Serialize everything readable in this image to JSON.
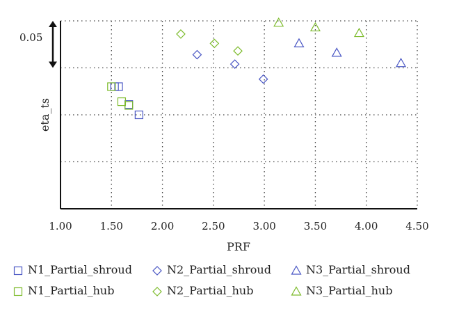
{
  "chart_data": {
    "type": "scatter",
    "title": "",
    "xlabel": "PRF",
    "ylabel": "eta_ts",
    "xlim": [
      1.0,
      4.5
    ],
    "x_ticks": [
      "1.00",
      "1.50",
      "2.00",
      "2.50",
      "3.00",
      "3.50",
      "4.00",
      "4.50"
    ],
    "x_tick_values": [
      1.0,
      1.5,
      2.0,
      2.5,
      3.0,
      3.5,
      4.0,
      4.5
    ],
    "ylim": [
      0.0,
      0.2
    ],
    "y_ticks_labeled": false,
    "y_gridlines": [
      0.05,
      0.1,
      0.15
    ],
    "scale_bar_label": "0.05",
    "scale_bar_value": 0.05,
    "grid": true,
    "legend_position": "bottom",
    "series": [
      {
        "name": "N1_Partial_shroud",
        "marker": "square",
        "color": "#4a57c4",
        "points": [
          [
            1.53,
            0.13
          ],
          [
            1.57,
            0.13
          ],
          [
            1.67,
            0.111
          ],
          [
            1.77,
            0.1
          ]
        ]
      },
      {
        "name": "N1_Partial_hub",
        "marker": "square",
        "color": "#7dbb2c",
        "points": [
          [
            1.5,
            0.13
          ],
          [
            1.6,
            0.114
          ],
          [
            1.67,
            0.11
          ]
        ]
      },
      {
        "name": "N2_Partial_shroud",
        "marker": "diamond",
        "color": "#4a57c4",
        "points": [
          [
            2.34,
            0.164
          ],
          [
            2.71,
            0.154
          ],
          [
            2.99,
            0.138
          ]
        ]
      },
      {
        "name": "N2_Partial_hub",
        "marker": "diamond",
        "color": "#7dbb2c",
        "points": [
          [
            2.18,
            0.186
          ],
          [
            2.51,
            0.176
          ],
          [
            2.74,
            0.168
          ]
        ]
      },
      {
        "name": "N3_Partial_shroud",
        "marker": "triangle",
        "color": "#4a57c4",
        "points": [
          [
            3.34,
            0.176
          ],
          [
            3.71,
            0.166
          ],
          [
            4.34,
            0.155
          ]
        ]
      },
      {
        "name": "N3_Partial_hub",
        "marker": "triangle",
        "color": "#7dbb2c",
        "points": [
          [
            3.14,
            0.198
          ],
          [
            3.5,
            0.193
          ],
          [
            3.93,
            0.187
          ]
        ]
      }
    ]
  }
}
